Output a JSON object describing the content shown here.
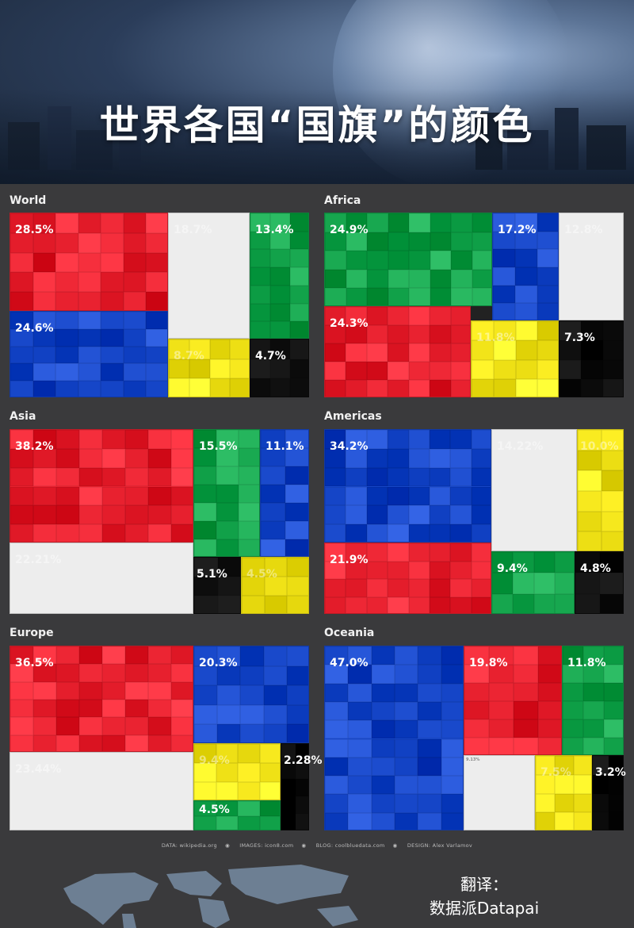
{
  "title": "世界各国“国旗”的颜色",
  "credits": {
    "data": "DATA: wikipedia.org",
    "images": "IMAGES: icon8.com",
    "blog": "BLOG: coolbluedata.com",
    "design": "DESIGN: Alex Varlamov"
  },
  "translation": {
    "line1": "翻译：",
    "line2": "数据派Datapai"
  },
  "colors": {
    "red": "#e8212f",
    "white": "#ededed",
    "green": "#12a24a",
    "blue": "#1646c8",
    "yellow": "#f3e51a",
    "black": "#0c0c0c",
    "orange": "#ef7d12",
    "lightblue": "#66aee6"
  },
  "chart_data": [
    {
      "type": "treemap",
      "region": "World",
      "label": "World",
      "segments": [
        {
          "color": "red",
          "value": 28.5,
          "label": "28.5%"
        },
        {
          "color": "white",
          "value": 18.7,
          "label": "18.7%"
        },
        {
          "color": "green",
          "value": 13.4,
          "label": "13.4%"
        },
        {
          "color": "blue",
          "value": 24.6,
          "label": "24.6%"
        },
        {
          "color": "yellow",
          "value": 8.7,
          "label": "8.7%"
        },
        {
          "color": "black",
          "value": 4.7,
          "label": "4.7%"
        }
      ]
    },
    {
      "type": "treemap",
      "region": "Africa",
      "label": "Africa",
      "segments": [
        {
          "color": "green",
          "value": 24.9,
          "label": "24.9%"
        },
        {
          "color": "blue",
          "value": 17.2,
          "label": "17.2%"
        },
        {
          "color": "white",
          "value": 12.8,
          "label": "12.8%"
        },
        {
          "color": "red",
          "value": 24.3,
          "label": "24.3%"
        },
        {
          "color": "yellow",
          "value": 11.8,
          "label": "11.8%"
        },
        {
          "color": "black",
          "value": 7.3,
          "label": "7.3%"
        }
      ]
    },
    {
      "type": "treemap",
      "region": "Asia",
      "label": "Asia",
      "segments": [
        {
          "color": "red",
          "value": 38.2,
          "label": "38.2%"
        },
        {
          "color": "green",
          "value": 15.5,
          "label": "15.5%"
        },
        {
          "color": "blue",
          "value": 11.1,
          "label": "11.1%"
        },
        {
          "color": "white",
          "value": 22.21,
          "label": "22.21%"
        },
        {
          "color": "black",
          "value": 5.1,
          "label": "5.1%"
        },
        {
          "color": "yellow",
          "value": 4.5,
          "label": "4.5%"
        }
      ]
    },
    {
      "type": "treemap",
      "region": "Americas",
      "label": "Americas",
      "segments": [
        {
          "color": "blue",
          "value": 34.2,
          "label": "34.2%"
        },
        {
          "color": "white",
          "value": 14.22,
          "label": "14.22%"
        },
        {
          "color": "yellow",
          "value": 10.0,
          "label": "10.0%"
        },
        {
          "color": "red",
          "value": 21.9,
          "label": "21.9%"
        },
        {
          "color": "green",
          "value": 9.4,
          "label": "9.4%"
        },
        {
          "color": "black",
          "value": 4.8,
          "label": "4.8%"
        }
      ]
    },
    {
      "type": "treemap",
      "region": "Europe",
      "label": "Europe",
      "segments": [
        {
          "color": "red",
          "value": 36.5,
          "label": "36.5%"
        },
        {
          "color": "blue",
          "value": 20.3,
          "label": "20.3%"
        },
        {
          "color": "white",
          "value": 23.44,
          "label": "23.44%"
        },
        {
          "color": "yellow",
          "value": 9.4,
          "label": "9.4%"
        },
        {
          "color": "green",
          "value": 4.5,
          "label": "4.5%"
        },
        {
          "color": "black",
          "value": 2.28,
          "label": "2.28%"
        }
      ]
    },
    {
      "type": "treemap",
      "region": "Oceania",
      "label": "Oceania",
      "segments": [
        {
          "color": "blue",
          "value": 47.0,
          "label": "47.0%"
        },
        {
          "color": "red",
          "value": 19.8,
          "label": "19.8%"
        },
        {
          "color": "green",
          "value": 11.8,
          "label": "11.8%"
        },
        {
          "color": "white",
          "value": 9.13,
          "label": "9.13%"
        },
        {
          "color": "yellow",
          "value": 7.5,
          "label": "7.5%"
        },
        {
          "color": "black",
          "value": 3.2,
          "label": "3.2%"
        }
      ]
    }
  ]
}
